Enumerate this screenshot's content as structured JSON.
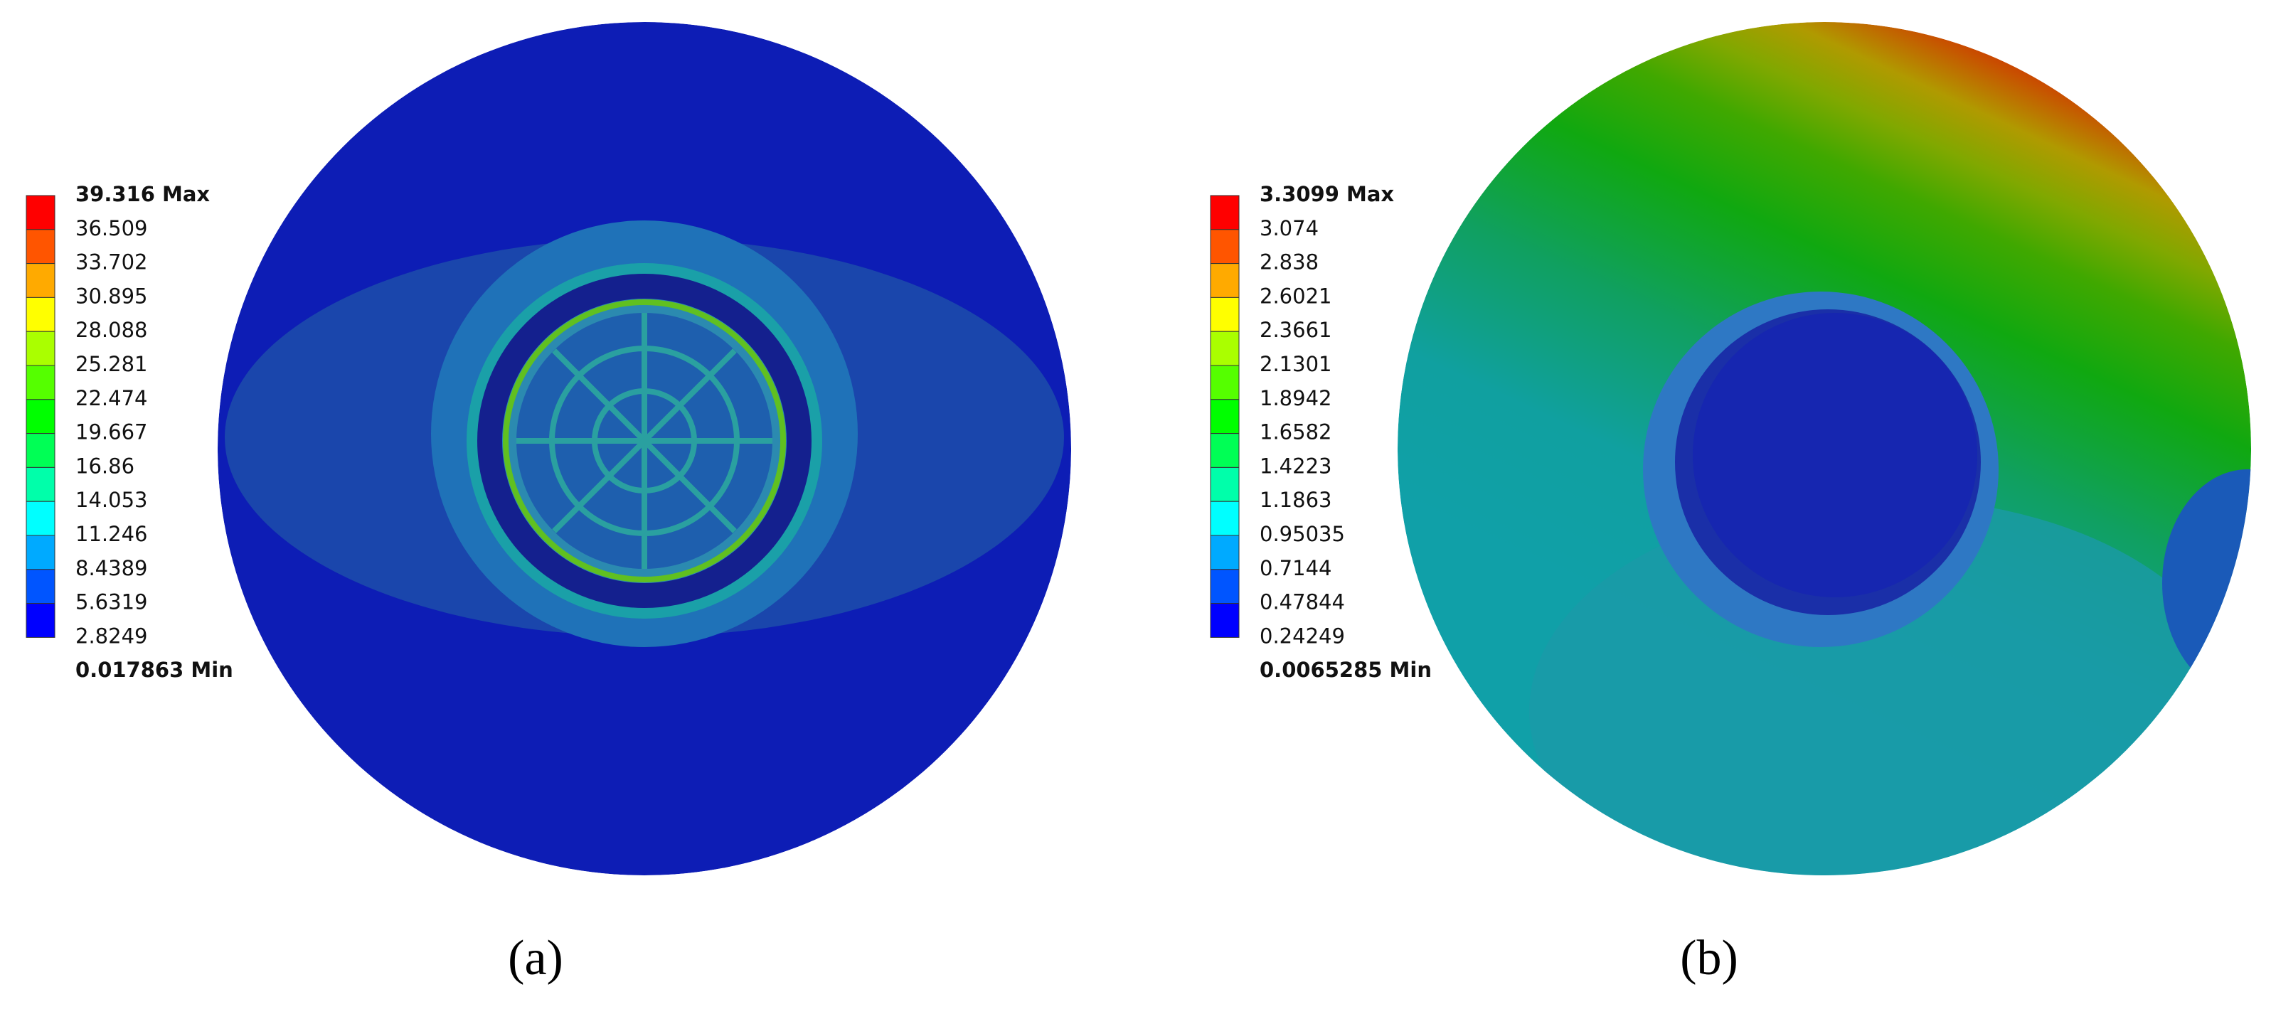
{
  "legend_colors": [
    "#ff0000",
    "#ff5500",
    "#ffaa00",
    "#ffff00",
    "#aaff00",
    "#55ff00",
    "#00ff00",
    "#00ff55",
    "#00ffaa",
    "#00ffff",
    "#00aaff",
    "#0055ff",
    "#0000ff"
  ],
  "panels": [
    {
      "legend": {
        "labels": [
          "39.316 Max",
          "36.509",
          "33.702",
          "30.895",
          "28.088",
          "25.281",
          "22.474",
          "19.667",
          "16.86",
          "14.053",
          "11.246",
          "8.4389",
          "5.6319",
          "2.8249",
          "0.017863 Min"
        ]
      },
      "caption": "(a)"
    },
    {
      "legend": {
        "labels": [
          "3.3099 Max",
          "3.074",
          "2.838",
          "2.6021",
          "2.3661",
          "2.1301",
          "1.8942",
          "1.6582",
          "1.4223",
          "1.1863",
          "0.95035",
          "0.7144",
          "0.47844",
          "0.24249",
          "0.0065285 Min"
        ]
      },
      "caption": "(b)"
    }
  ]
}
